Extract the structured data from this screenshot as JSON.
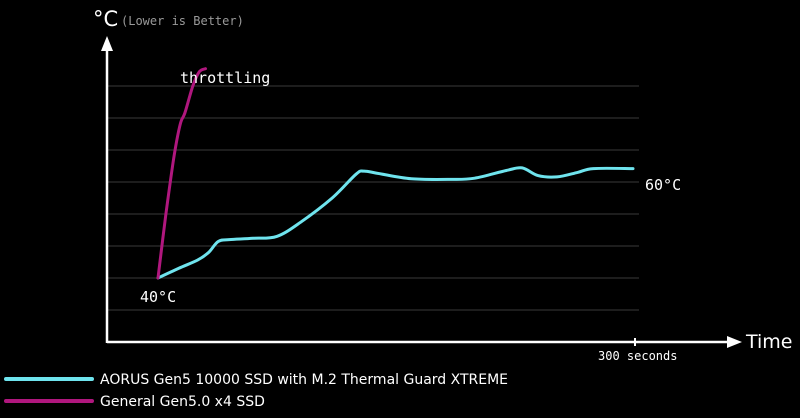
{
  "chart_data": {
    "type": "line",
    "title": "",
    "ylabel": "°C",
    "ylabel_note": "(Lower is Better)",
    "xlabel": "Time",
    "x_tick_label": "300 seconds",
    "xlim": [
      0,
      300
    ],
    "ylim": [
      30,
      75
    ],
    "annotations": {
      "start_label": "40°C",
      "end_label": "60°C",
      "throttling_label": "throttling"
    },
    "grid": true,
    "legend_position": "bottom-left",
    "series": [
      {
        "name": "AORUS Gen5 10000 SSD with M.2 Thermal Guard XTREME",
        "color": "#6fe4ee",
        "points": [
          [
            0,
            40
          ],
          [
            13,
            41.5
          ],
          [
            25,
            42.8
          ],
          [
            32,
            44
          ],
          [
            38,
            45.7
          ],
          [
            45,
            46
          ],
          [
            60,
            46.2
          ],
          [
            75,
            46.5
          ],
          [
            90,
            48.7
          ],
          [
            110,
            52.5
          ],
          [
            125,
            56.2
          ],
          [
            130,
            56.7
          ],
          [
            140,
            56.3
          ],
          [
            160,
            55.5
          ],
          [
            185,
            55.4
          ],
          [
            200,
            55.6
          ],
          [
            220,
            56.8
          ],
          [
            230,
            57.2
          ],
          [
            240,
            56
          ],
          [
            252,
            55.8
          ],
          [
            265,
            56.5
          ],
          [
            275,
            57.1
          ],
          [
            300,
            57.1
          ]
        ]
      },
      {
        "name": "General Gen5.0 x4 SSD",
        "color": "#b0177e",
        "points": [
          [
            0,
            40
          ],
          [
            5,
            50
          ],
          [
            10,
            58.8
          ],
          [
            14,
            64
          ],
          [
            17,
            65.8
          ],
          [
            22,
            70
          ],
          [
            26,
            72.2
          ],
          [
            30,
            72.7
          ]
        ]
      }
    ]
  }
}
